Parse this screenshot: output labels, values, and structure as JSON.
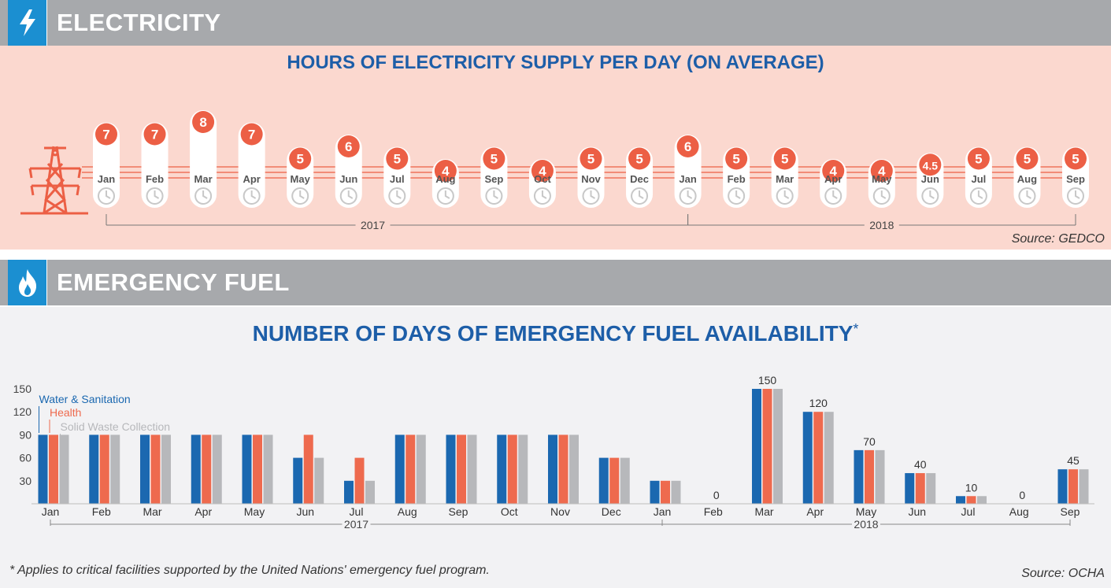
{
  "electricity": {
    "header": "ELECTRICITY",
    "title": "HOURS OF ELECTRICITY SUPPLY PER DAY (ON AVERAGE)",
    "source": "Source: GEDCO"
  },
  "fuel": {
    "header": "EMERGENCY FUEL",
    "title": "NUMBER OF DAYS OF EMERGENCY FUEL AVAILABILITY",
    "title_mark": "*",
    "footnote": "* Applies to critical facilities supported by the United Nations' emergency fuel program.",
    "source": "Source: OCHA"
  },
  "colors": {
    "header_gray": "#a7a9ac",
    "icon_blue": "#1b8fd1",
    "title_blue": "#1d5ea8",
    "accent_red": "#ec5f45",
    "water_blue": "#1b68b0",
    "health_red": "#ee6a4e",
    "waste_gray": "#b7b8bb"
  },
  "chart_data": [
    {
      "type": "bar",
      "title": "HOURS OF ELECTRICITY SUPPLY PER DAY (ON AVERAGE)",
      "categories": [
        "Jan",
        "Feb",
        "Mar",
        "Apr",
        "May",
        "Jun",
        "Jul",
        "Aug",
        "Sep",
        "Oct",
        "Nov",
        "Dec",
        "Jan",
        "Feb",
        "Mar",
        "Apr",
        "May",
        "Jun",
        "Jul",
        "Aug",
        "Sep"
      ],
      "values": [
        7,
        7,
        8,
        7,
        5,
        6,
        5,
        4,
        5,
        4,
        5,
        5,
        6,
        5,
        5,
        4,
        4,
        4.5,
        5,
        5,
        5
      ],
      "value_labels": [
        "7",
        "7",
        "8",
        "7",
        "5",
        "6",
        "5",
        "4",
        "5",
        "4",
        "5",
        "5",
        "6",
        "5",
        "5",
        "4",
        "4",
        "4.5",
        "5",
        "5",
        "5"
      ],
      "year_groups": [
        {
          "label": "2017",
          "start": 0,
          "end": 11
        },
        {
          "label": "2018",
          "start": 12,
          "end": 20
        }
      ]
    },
    {
      "type": "bar",
      "title": "NUMBER OF DAYS OF EMERGENCY FUEL AVAILABILITY",
      "categories": [
        "Jan",
        "Feb",
        "Mar",
        "Apr",
        "May",
        "Jun",
        "Jul",
        "Aug",
        "Sep",
        "Oct",
        "Nov",
        "Dec",
        "Jan",
        "Feb",
        "Mar",
        "Apr",
        "May",
        "Jun",
        "Jul",
        "Aug",
        "Sep"
      ],
      "yticks": [
        30,
        60,
        90,
        120,
        150
      ],
      "ylim": [
        0,
        150
      ],
      "series": [
        {
          "name": "Water & Sanitation",
          "color": "#1b68b0",
          "values": [
            90,
            90,
            90,
            90,
            90,
            60,
            30,
            90,
            90,
            90,
            90,
            60,
            30,
            0,
            150,
            120,
            70,
            40,
            10,
            0,
            45
          ]
        },
        {
          "name": "Health",
          "color": "#ee6a4e",
          "values": [
            90,
            90,
            90,
            90,
            90,
            90,
            60,
            90,
            90,
            90,
            90,
            60,
            30,
            0,
            150,
            120,
            70,
            40,
            10,
            0,
            45
          ]
        },
        {
          "name": "Solid Waste Collection",
          "color": "#b7b8bb",
          "values": [
            90,
            90,
            90,
            90,
            90,
            60,
            30,
            90,
            90,
            90,
            90,
            60,
            30,
            0,
            150,
            120,
            70,
            40,
            10,
            0,
            45
          ]
        }
      ],
      "value_labels": [
        "",
        "",
        "",
        "",
        "",
        "",
        "",
        "",
        "",
        "",
        "",
        "",
        "",
        "0",
        "150",
        "120",
        "70",
        "40",
        "10",
        "0",
        "45"
      ],
      "year_groups": [
        {
          "label": "2017",
          "start": 0,
          "end": 11
        },
        {
          "label": "2018",
          "start": 12,
          "end": 20
        }
      ]
    }
  ]
}
